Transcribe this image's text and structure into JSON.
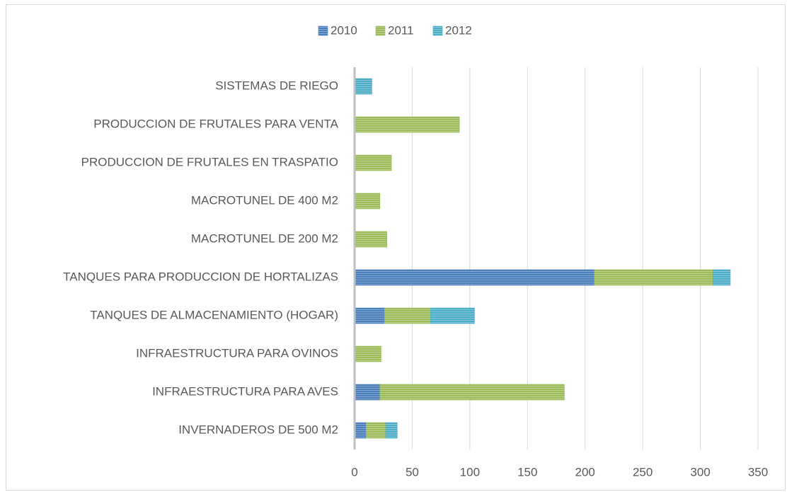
{
  "chart_data": {
    "type": "stacked-bar-horizontal",
    "categories": [
      "INVERNADEROS DE 500 M2",
      "INFRAESTRUCTURA PARA AVES",
      "INFRAESTRUCTURA PARA OVINOS",
      "TANQUES DE ALMACENAMIENTO (HOGAR)",
      "TANQUES PARA PRODUCCION DE HORTALIZAS",
      "MACROTUNEL DE 200 M2",
      "MACROTUNEL DE 400 M2",
      "PRODUCCION DE FRUTALES EN TRASPATIO",
      "PRODUCCION DE FRUTALES PARA VENTA",
      "SISTEMAS DE RIEGO"
    ],
    "series": [
      {
        "name": "2010",
        "color": "#4a7ebb",
        "values": [
          10,
          22,
          0,
          26,
          208,
          0,
          0,
          0,
          0,
          0
        ]
      },
      {
        "name": "2011",
        "color": "#9bbb59",
        "values": [
          17,
          160,
          23,
          40,
          103,
          28,
          22,
          32,
          91,
          0
        ]
      },
      {
        "name": "2012",
        "color": "#4bacc6",
        "values": [
          10,
          0,
          0,
          38,
          15,
          0,
          0,
          0,
          0,
          15
        ]
      }
    ],
    "xlim": [
      0,
      350
    ],
    "xticks": [
      0,
      50,
      100,
      150,
      200,
      250,
      300,
      350
    ],
    "grid": true,
    "legend": "top"
  }
}
